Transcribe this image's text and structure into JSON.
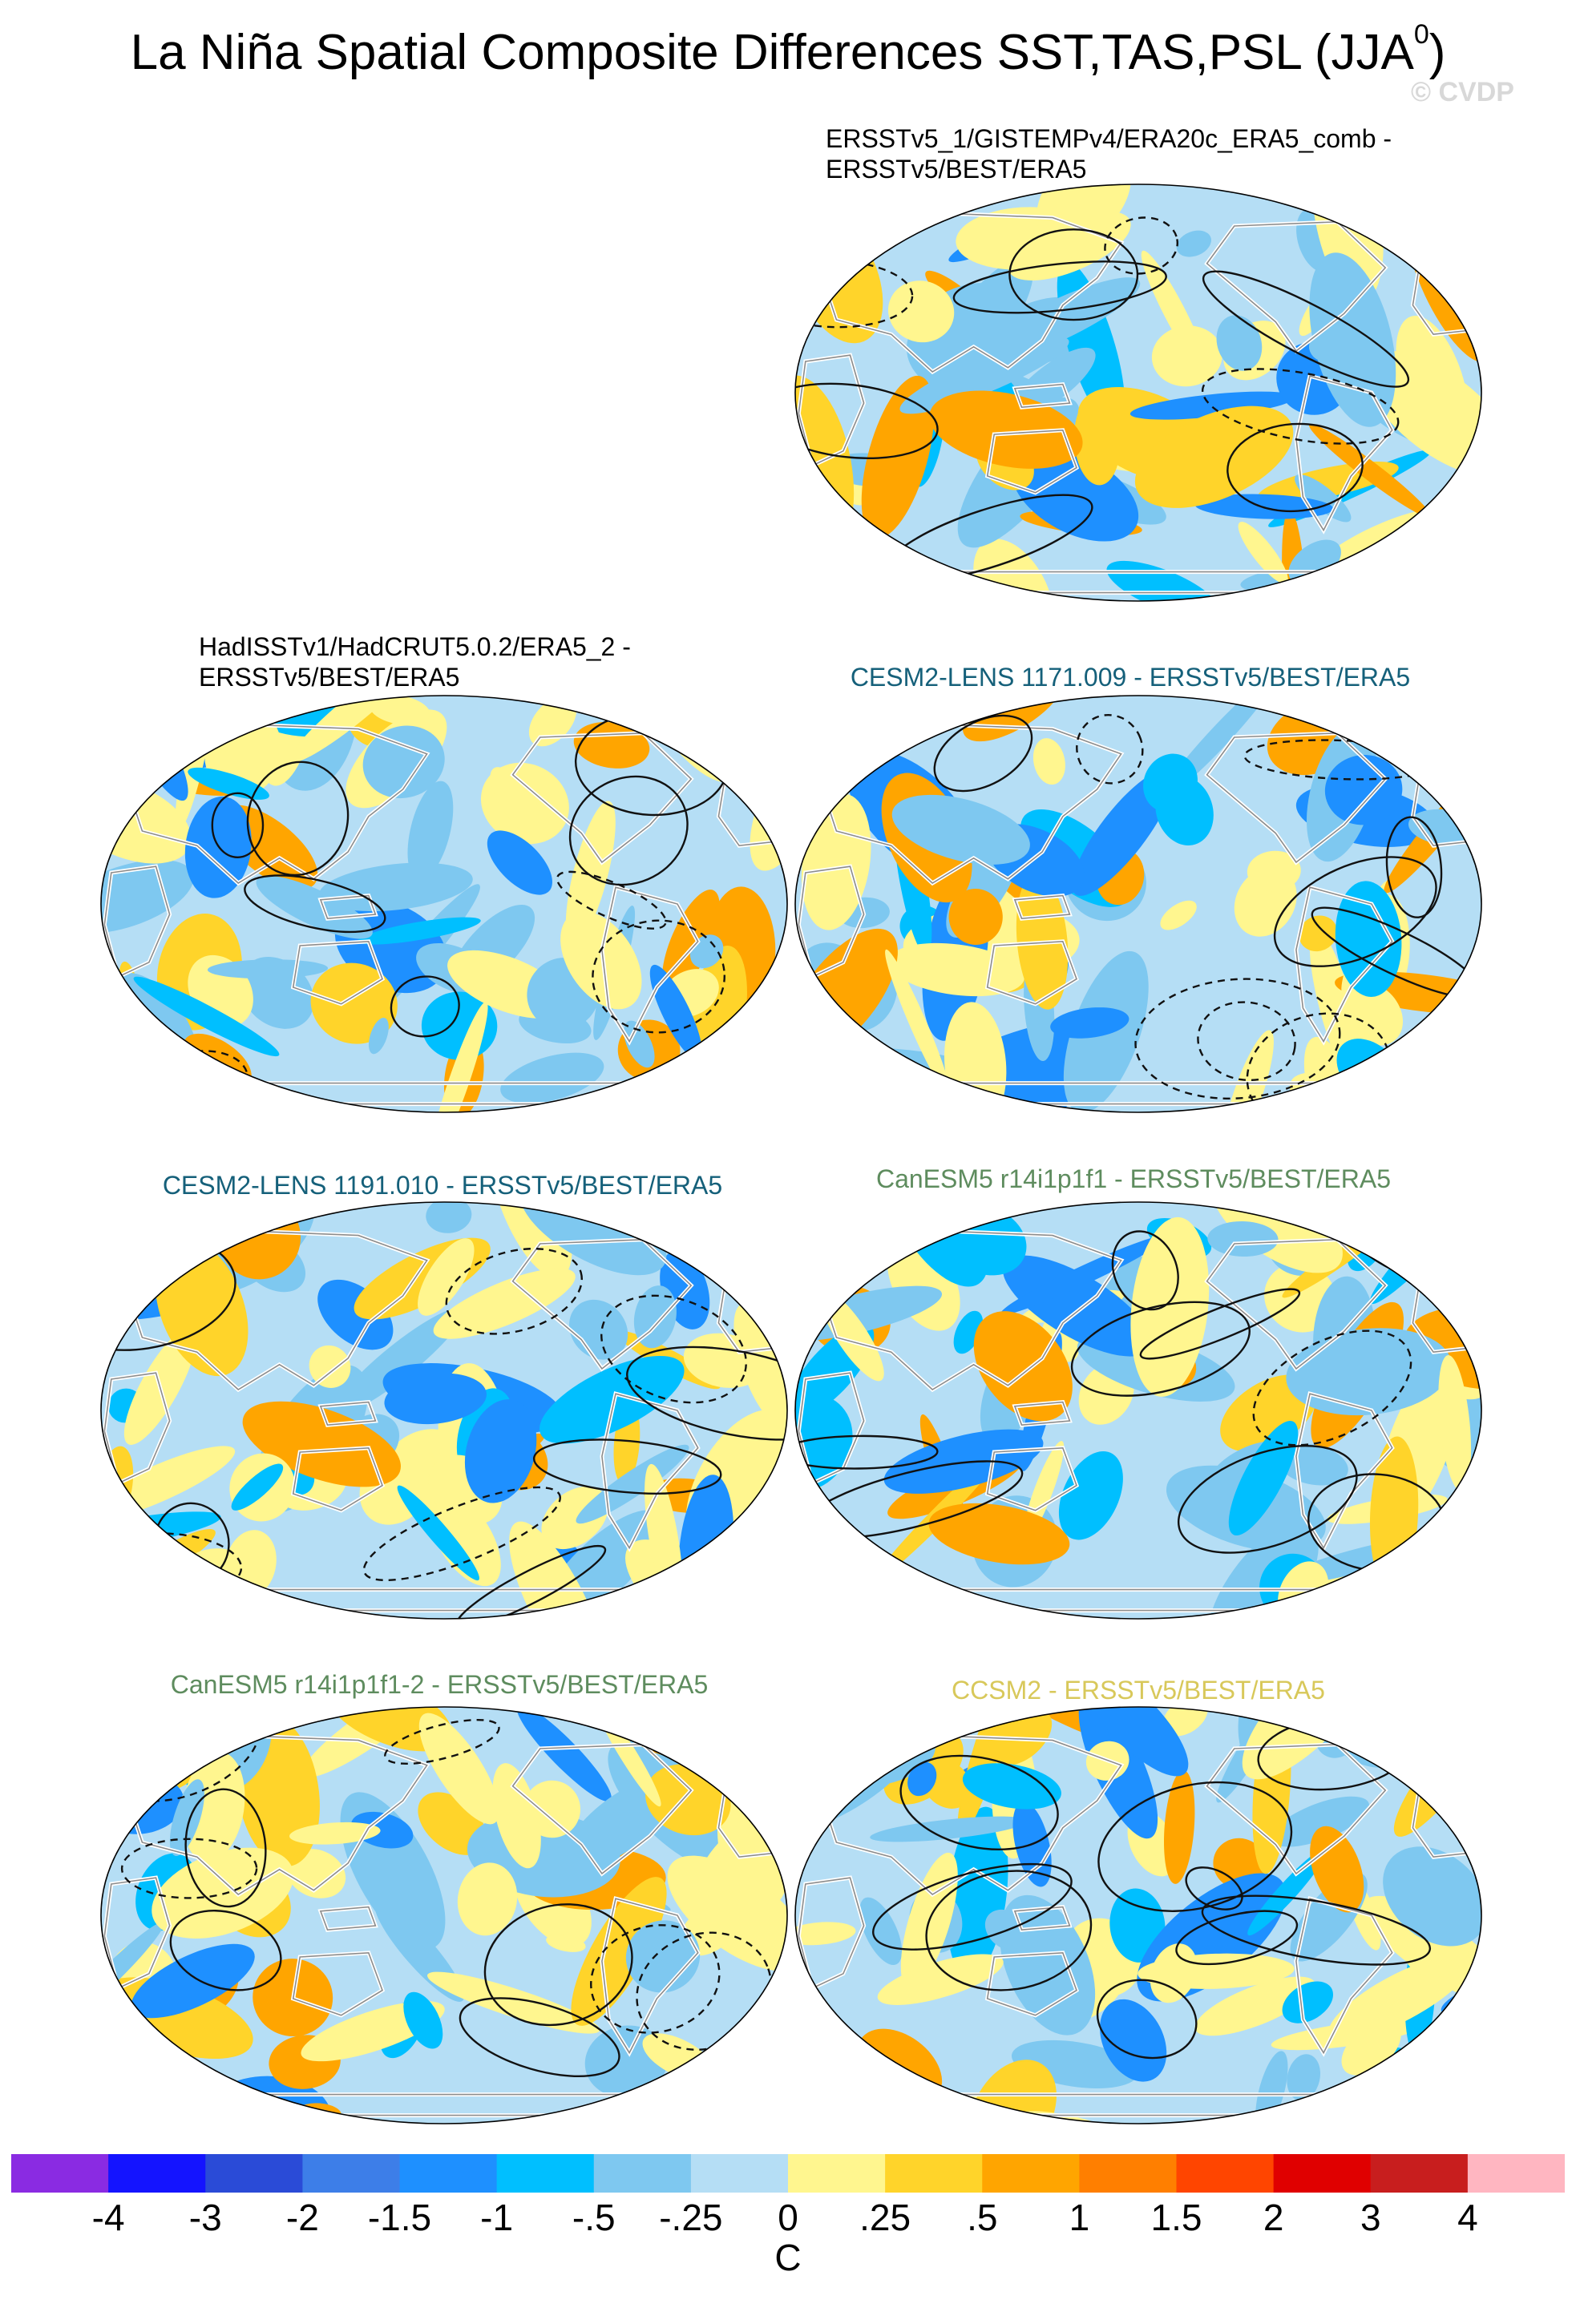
{
  "title_main": "La Niña Spatial Composite Differences SST,TAS,PSL (JJA",
  "title_sup": "0",
  "title_end": ")",
  "watermark": "© CVDP",
  "panels": [
    {
      "line1": "ERSSTv5_1/GISTEMPv4/ERA20c_ERA5_comb -",
      "line2": "ERSSTv5/BEST/ERA5",
      "color": "#000000",
      "seed": 11
    },
    {
      "line1": "HadISSTv1/HadCRUT5.0.2/ERA5_2 -",
      "line2": "ERSSTv5/BEST/ERA5",
      "color": "#000000",
      "seed": 23
    },
    {
      "line1": "CESM2-LENS 1171.009 - ERSSTv5/BEST/ERA5",
      "line2": "",
      "color": "#15607a",
      "seed": 37
    },
    {
      "line1": "CESM2-LENS 1191.010 - ERSSTv5/BEST/ERA5",
      "line2": "",
      "color": "#15607a",
      "seed": 41
    },
    {
      "line1": "CanESM5 r14i1p1f1 - ERSSTv5/BEST/ERA5",
      "line2": "",
      "color": "#5e8c5e",
      "seed": 53
    },
    {
      "line1": "CanESM5 r14i1p1f1-2 - ERSSTv5/BEST/ERA5",
      "line2": "",
      "color": "#5e8c5e",
      "seed": 67
    },
    {
      "line1": "CCSM2 - ERSSTv5/BEST/ERA5",
      "line2": "",
      "color": "#d8c85a",
      "seed": 79
    }
  ],
  "colorbar": {
    "unit": "C",
    "labels": [
      "-4",
      "-3",
      "-2",
      "-1.5",
      "-1",
      "-.5",
      "-.25",
      "0",
      ".25",
      ".5",
      "1",
      "1.5",
      "2",
      "3",
      "4"
    ],
    "colors": [
      "#8a2be2",
      "#1414ff",
      "#2a4bd7",
      "#3d7ee8",
      "#1e90ff",
      "#00bfff",
      "#7ec8f0",
      "#b5def5",
      "#fff68f",
      "#ffd42a",
      "#ffa500",
      "#ff7f00",
      "#ff4500",
      "#e00000",
      "#c81e1e",
      "#ffb6c1"
    ]
  }
}
